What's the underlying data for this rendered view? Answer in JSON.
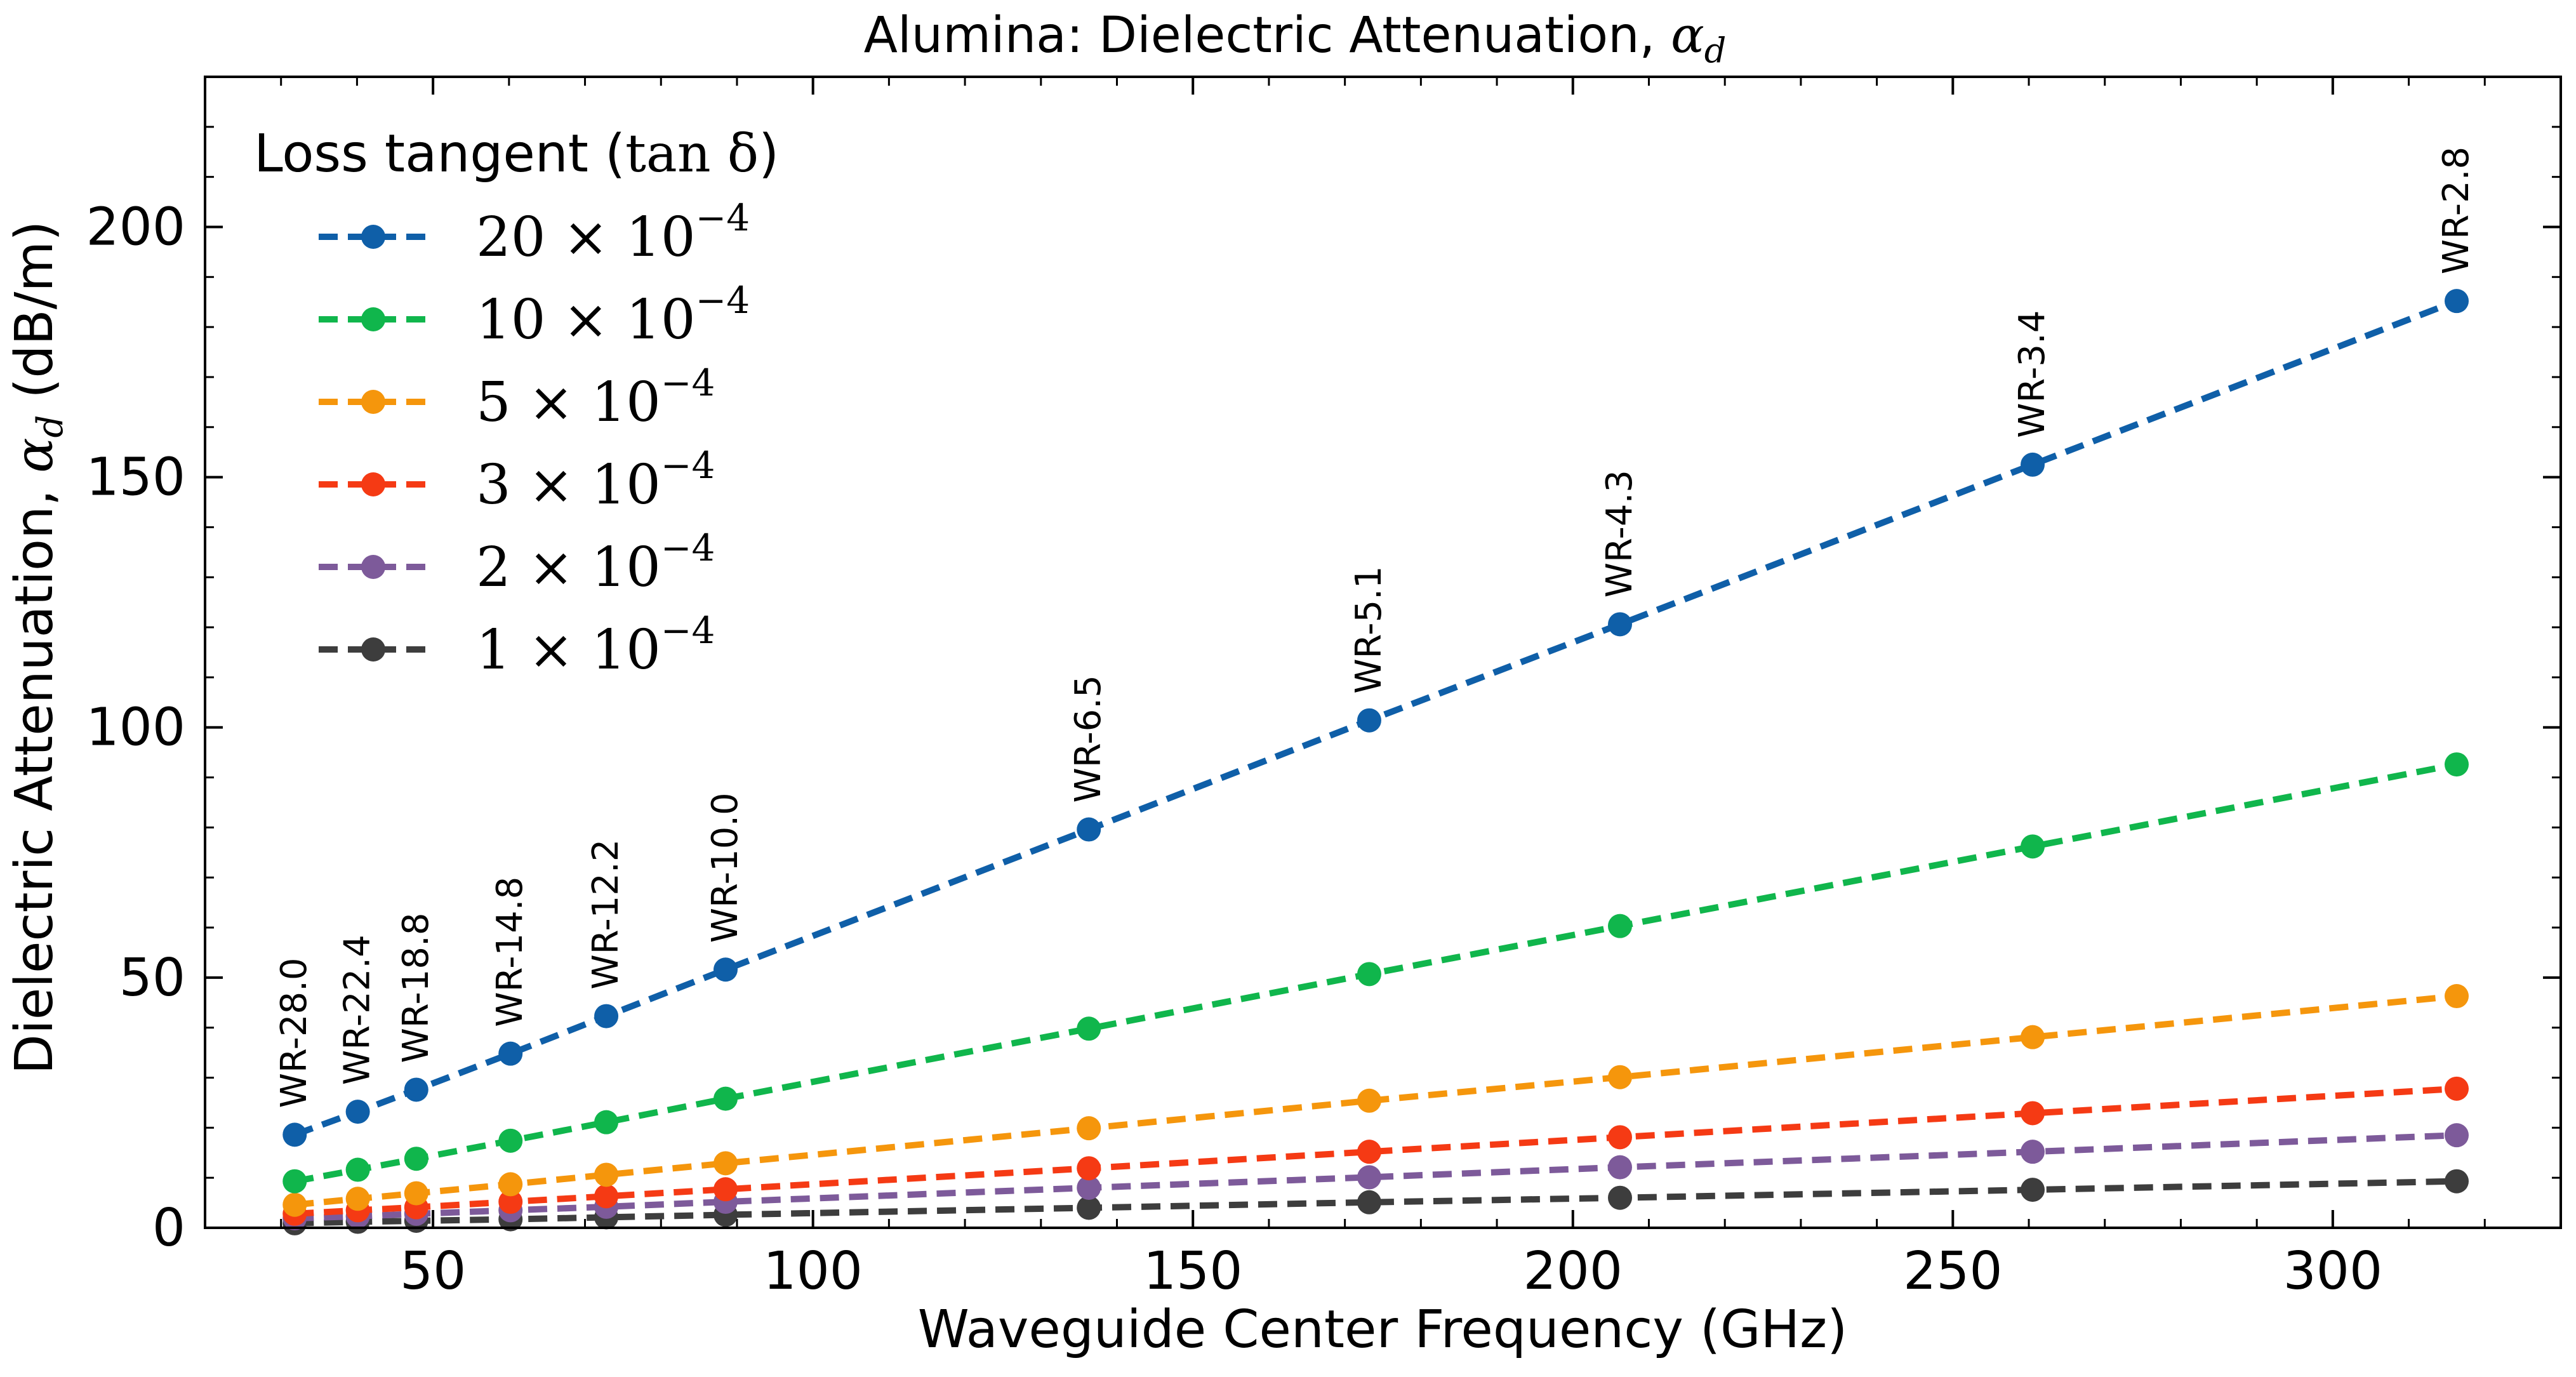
{
  "chart_data": {
    "type": "line",
    "title": "Alumina: Dielectric Attenuation, ",
    "title_symbol": "α",
    "title_symbol_sub": "d",
    "xlabel": "Waveguide Center Frequency (GHz)",
    "ylabel": "Dielectric Attenuation, ",
    "ylabel_symbol": "α",
    "ylabel_symbol_sub": "d",
    "ylabel_unit": " (dB/m)",
    "xlim": [
      20,
      330
    ],
    "ylim": [
      0,
      230
    ],
    "x_ticks": [
      50,
      100,
      150,
      200,
      250,
      300
    ],
    "y_ticks": [
      0,
      50,
      100,
      150,
      200
    ],
    "grid": false,
    "legend_title": "Loss tangent (",
    "legend_title_math": "tan δ",
    "legend_title_close": ")",
    "legend_placement": "upper-left",
    "x": [
      31.8,
      40.1,
      47.8,
      60.2,
      72.8,
      88.5,
      136.3,
      173.2,
      206.2,
      260.5,
      316.3
    ],
    "point_labels": [
      "WR-28.0",
      "WR-22.4",
      "WR-18.8",
      "WR-14.8",
      "WR-12.2",
      "WR-10.0",
      "WR-6.5",
      "WR-5.1",
      "WR-4.3",
      "WR-3.4",
      "WR-2.8"
    ],
    "series": [
      {
        "name": "20 × 10",
        "exponent": "−4",
        "color": "#0f5fa8",
        "values": [
          18.6,
          23.2,
          27.6,
          34.8,
          42.3,
          51.6,
          79.6,
          101.4,
          120.6,
          152.5,
          185.2
        ]
      },
      {
        "name": "10 × 10",
        "exponent": "−4",
        "color": "#10b64c",
        "values": [
          9.3,
          11.6,
          13.8,
          17.4,
          21.1,
          25.8,
          39.8,
          50.7,
          60.3,
          76.2,
          92.6
        ]
      },
      {
        "name": "5 × 10",
        "exponent": "−4",
        "color": "#f5960c",
        "values": [
          4.6,
          5.8,
          6.9,
          8.7,
          10.6,
          12.9,
          19.9,
          25.4,
          30.1,
          38.1,
          46.3
        ]
      },
      {
        "name": "3 × 10",
        "exponent": "−4",
        "color": "#f53a14",
        "values": [
          2.8,
          3.5,
          4.1,
          5.2,
          6.3,
          7.7,
          11.9,
          15.2,
          18.1,
          22.9,
          27.8
        ]
      },
      {
        "name": "2 × 10",
        "exponent": "−4",
        "color": "#7d5a9a",
        "values": [
          1.9,
          2.3,
          2.8,
          3.5,
          4.2,
          5.2,
          8.0,
          10.1,
          12.1,
          15.2,
          18.5
        ]
      },
      {
        "name": "1 × 10",
        "exponent": "−4",
        "color": "#3d3d3d",
        "values": [
          0.9,
          1.2,
          1.4,
          1.7,
          2.1,
          2.6,
          4.0,
          5.1,
          6.0,
          7.6,
          9.3
        ]
      }
    ]
  }
}
